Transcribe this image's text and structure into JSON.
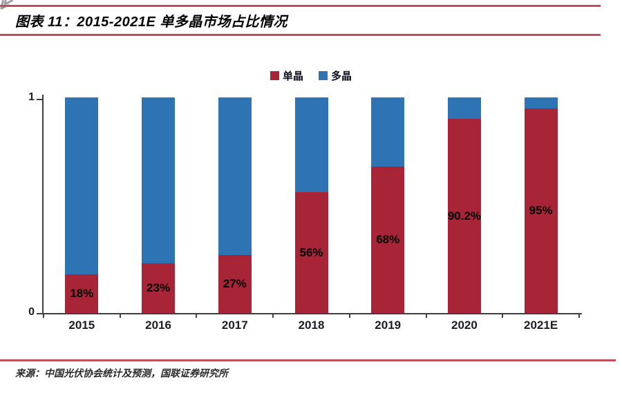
{
  "figure": {
    "title": "图表 11：2015-2021E 单多晶市场占比情况",
    "source": "来源：中国光伏协会统计及预测，国联证券研究所",
    "corner_mark_glyph": "≪"
  },
  "colors": {
    "mono_red": "#a72537",
    "multi_blue": "#2e74b5",
    "rule_red": "#c44d5c",
    "axis": "#3f3f3f"
  },
  "chart_data": {
    "type": "bar",
    "stacked": true,
    "title": "2015-2021E 单多晶市场占比情况",
    "categories": [
      "2015",
      "2016",
      "2017",
      "2018",
      "2019",
      "2020",
      "2021E"
    ],
    "series": [
      {
        "name": "单晶",
        "color": "#a72537",
        "values": [
          0.18,
          0.23,
          0.27,
          0.56,
          0.68,
          0.902,
          0.95
        ]
      },
      {
        "name": "多晶",
        "color": "#2e74b5",
        "values": [
          0.82,
          0.77,
          0.73,
          0.44,
          0.32,
          0.098,
          0.05
        ]
      }
    ],
    "bar_labels": [
      "18%",
      "23%",
      "27%",
      "56%",
      "68%",
      "90.2%",
      "95%"
    ],
    "ylim": [
      0,
      1
    ],
    "yticks": [
      "0",
      "1"
    ],
    "grid": false,
    "legend_position": "top-center"
  }
}
